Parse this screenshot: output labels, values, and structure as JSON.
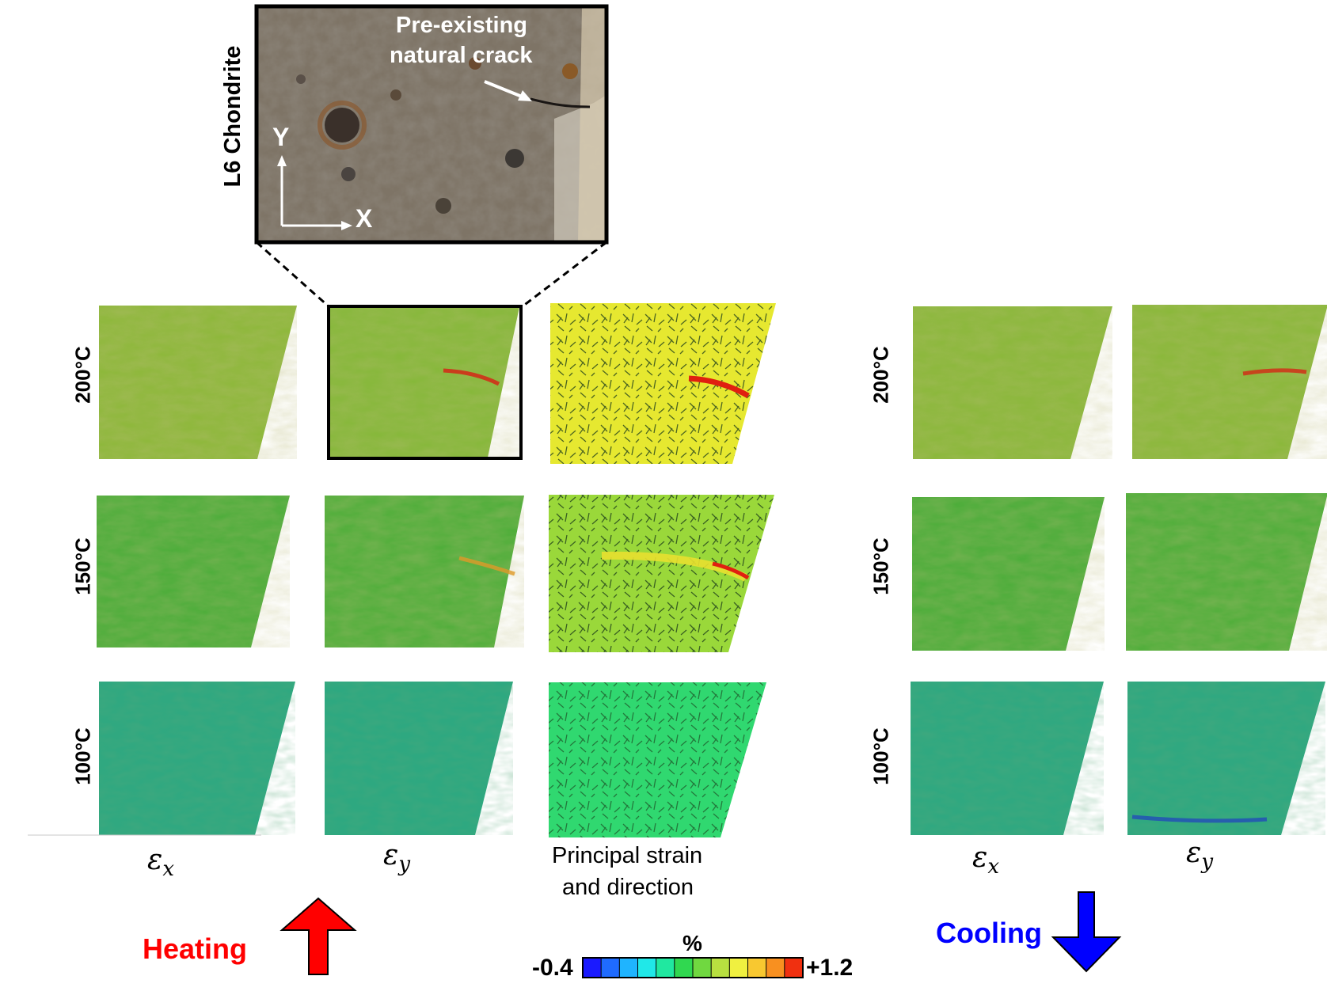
{
  "inset": {
    "specimen_label": "L6 Chondrite",
    "crack_label_line1": "Pre-existing",
    "crack_label_line2": "natural crack",
    "axis_y": "Y",
    "axis_x": "X"
  },
  "rows": [
    "200°C",
    "150°C",
    "100°C"
  ],
  "heating_columns": {
    "ex": "ε",
    "ex_sub": "x",
    "ey": "ε",
    "ey_sub": "y",
    "principal_line1": "Principal strain",
    "principal_line2": "and direction"
  },
  "cooling_columns": {
    "ex": "ε",
    "ex_sub": "x",
    "ey": "ε",
    "ey_sub": "y"
  },
  "heating_label": "Heating",
  "cooling_label": "Cooling",
  "colorbar": {
    "unit": "%",
    "min": "-0.4",
    "max": "+1.2",
    "colors": [
      "#1a1aff",
      "#1f6bff",
      "#1fb4ff",
      "#20e8e8",
      "#20e8a0",
      "#30d850",
      "#70d840",
      "#b8e040",
      "#f0f040",
      "#f8c830",
      "#f89020",
      "#f03010"
    ]
  },
  "colors": {
    "heating": "#ff0000",
    "cooling": "#0000ff"
  }
}
